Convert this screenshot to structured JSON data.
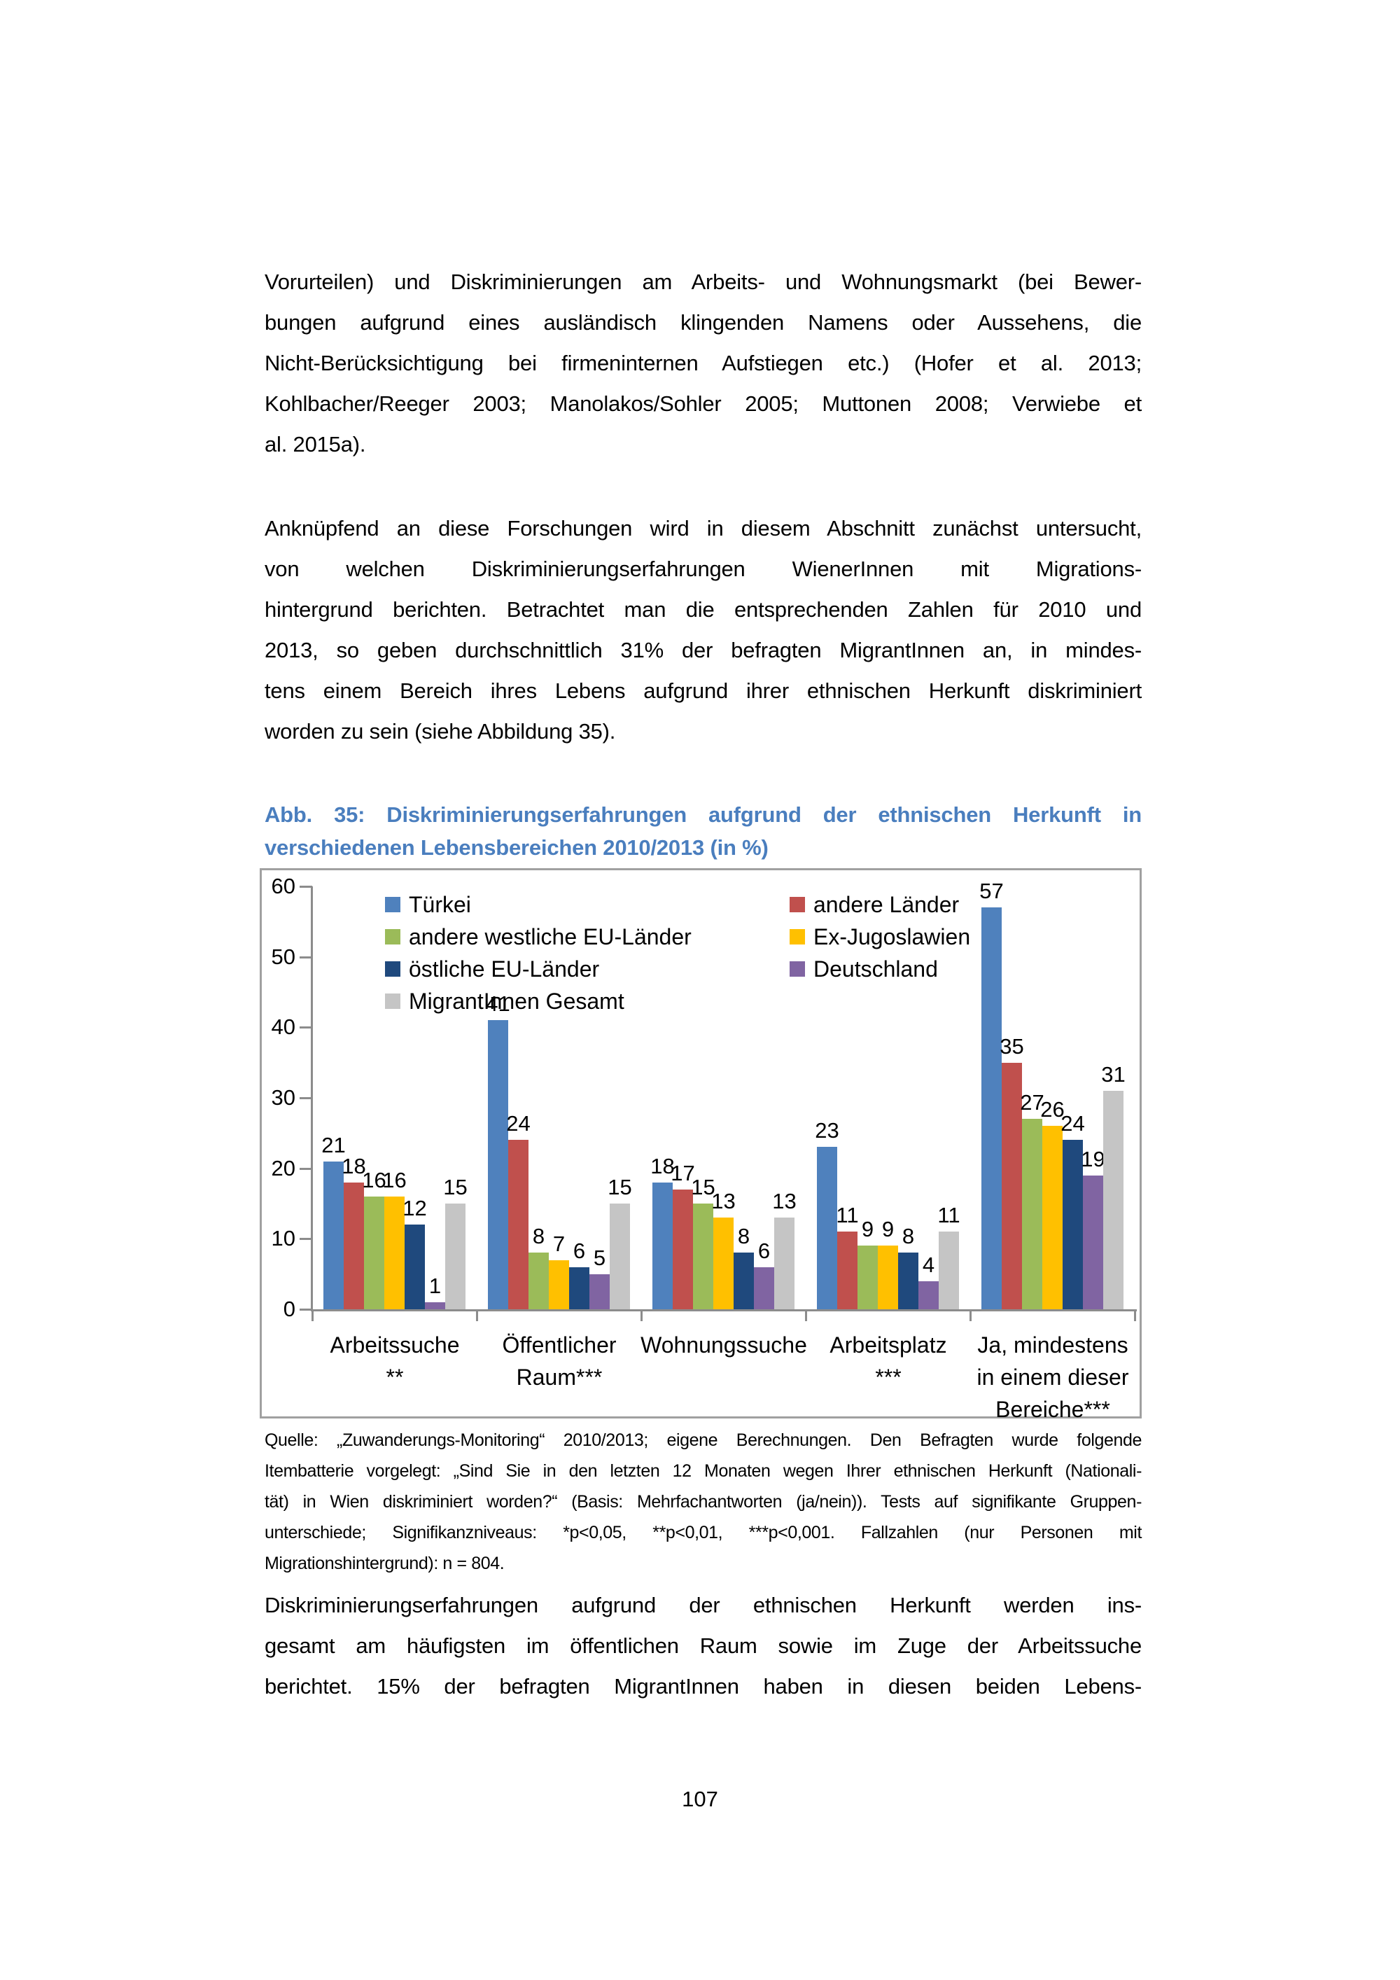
{
  "document": {
    "paragraph1_lines": [
      "Vorurteilen) und Diskriminierungen am Arbeits- und Wohnungsmarkt (bei Bewer-",
      "bungen aufgrund eines ausländisch klingenden Namens oder Aussehens, die",
      "Nicht-Berücksichtigung bei firmeninternen Aufstiegen etc.) (Hofer et al. 2013;",
      "Kohlbacher/Reeger 2003; Manolakos/Sohler 2005; Muttonen 2008; Verwiebe et",
      "al. 2015a)."
    ],
    "paragraph2_lines": [
      "Anknüpfend an diese Forschungen wird in diesem Abschnitt zunächst untersucht,",
      "von welchen Diskriminierungserfahrungen WienerInnen mit Migrations-",
      "hintergrund berichten. Betrachtet man die entsprechenden Zahlen für 2010 und",
      "2013, so geben durchschnittlich 31% der befragten MigrantInnen an, in mindes-",
      "tens einem Bereich ihres Lebens aufgrund ihrer ethnischen Herkunft diskriminiert",
      "worden zu sein (siehe Abbildung 35)."
    ],
    "caption_lines": [
      "Abb. 35: Diskriminierungserfahrungen aufgrund der ethnischen Herkunft in",
      "verschiedenen Lebensbereichen 2010/2013 (in %)"
    ],
    "source_lines": [
      "Quelle: „Zuwanderungs-Monitoring“ 2010/2013; eigene Berechnungen. Den Befragten wurde folgende",
      "Itembatterie vorgelegt: „Sind Sie in den letzten 12 Monaten wegen Ihrer ethnischen Herkunft (Nationali-",
      "tät) in Wien diskriminiert worden?“ (Basis: Mehrfachantworten (ja/nein)). Tests auf signifikante Gruppen-",
      "unterschiede; Signifikanzniveaus: *p<0,05, **p<0,01, ***p<0,001. Fallzahlen (nur Personen mit",
      "Migrationshintergrund): n = 804."
    ],
    "paragraph3_lines": [
      "Diskriminierungserfahrungen aufgrund der ethnischen Herkunft werden ins-",
      "gesamt am häufigsten im öffentlichen Raum sowie im Zuge der Arbeitssuche",
      "berichtet. 15% der befragten MigrantInnen haben in diesen beiden Lebens-"
    ],
    "page_number": "107"
  },
  "chart_data": {
    "type": "bar",
    "title": "Abb. 35: Diskriminierungserfahrungen aufgrund der ethnischen Herkunft in verschiedenen Lebensbereichen 2010/2013 (in %)",
    "xlabel": "",
    "ylabel": "",
    "y_axis": {
      "min": 0,
      "max": 60,
      "step": 10,
      "tick_labels": [
        "0",
        "10",
        "20",
        "30",
        "40",
        "50",
        "60"
      ]
    },
    "grid": false,
    "legend_position": "top-left-inside, two columns",
    "categories": [
      "Arbeitssuche **",
      "Öffentlicher Raum***",
      "Wohnungssuche",
      "Arbeitsplatz ***",
      "Ja, mindestens in einem dieser Bereiche***"
    ],
    "category_label_lines": [
      [
        "Arbeitssuche",
        "**"
      ],
      [
        "Öffentlicher",
        "Raum***"
      ],
      [
        "Wohnungssuche"
      ],
      [
        "Arbeitsplatz",
        "***"
      ],
      [
        "Ja, mindestens",
        "in einem dieser",
        "Bereiche***"
      ]
    ],
    "series": [
      {
        "name": "Türkei",
        "color": "#4F81BD",
        "values": [
          21,
          41,
          18,
          23,
          57
        ]
      },
      {
        "name": "andere Länder",
        "color": "#C0504D",
        "values": [
          18,
          24,
          17,
          11,
          35
        ]
      },
      {
        "name": "andere westliche EU-Länder",
        "color": "#9BBB59",
        "values": [
          16,
          8,
          15,
          9,
          27
        ]
      },
      {
        "name": "Ex-Jugoslawien",
        "color": "#FFC000",
        "values": [
          16,
          7,
          13,
          9,
          26
        ]
      },
      {
        "name": "östliche EU-Länder",
        "color": "#1F497D",
        "values": [
          12,
          6,
          8,
          8,
          24
        ]
      },
      {
        "name": "Deutschland",
        "color": "#8064A2",
        "values": [
          1,
          5,
          6,
          4,
          19
        ]
      },
      {
        "name": "MigrantInnen Gesamt",
        "color": "#C5C5C5",
        "values": [
          15,
          15,
          13,
          11,
          31
        ]
      }
    ],
    "legend_columns": [
      [
        "Türkei",
        "andere westliche EU-Länder",
        "östliche EU-Länder",
        "MigrantInnen Gesamt"
      ],
      [
        "andere Länder",
        "Ex-Jugoslawien",
        "Deutschland"
      ]
    ],
    "axis_color": "#8c8c8c",
    "frame_border_color": "#a0a0a0"
  }
}
